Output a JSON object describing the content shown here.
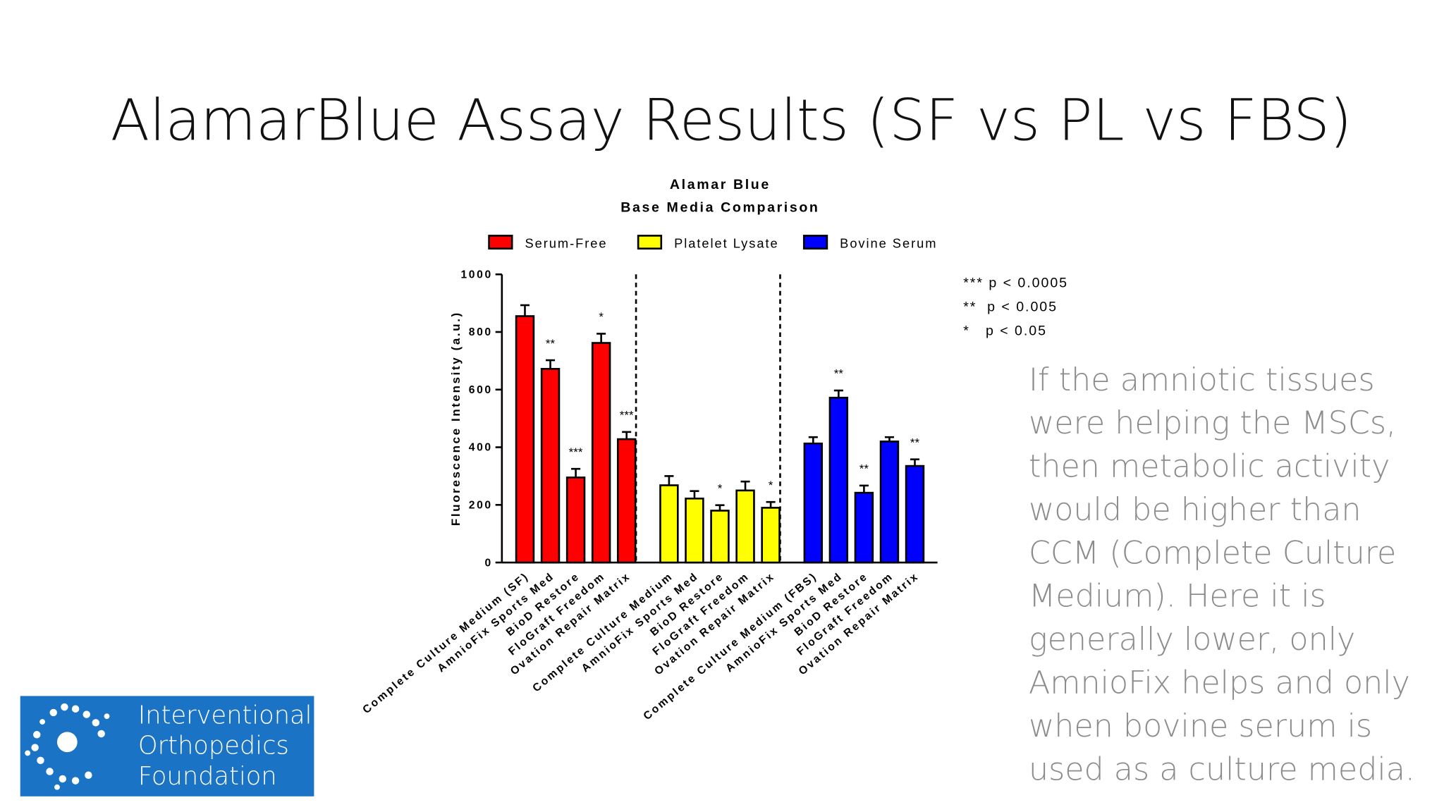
{
  "slide_title": "AlamarBlue Assay Results (SF vs PL vs FBS)",
  "body_lines": [
    "If the amniotic tissues",
    "were helping the MSCs,",
    "then metabolic activity",
    "would be higher than",
    "CCM (Complete Culture",
    "Medium). Here it is",
    "generally lower, only",
    "AmnioFix helps and only",
    "when bovine serum is",
    "used as a culture media."
  ],
  "logo_lines": [
    "Interventional",
    "Orthopedics",
    "Foundation"
  ],
  "chart_data": {
    "type": "bar",
    "title": [
      "Alamar Blue",
      "Base  Media Comparison"
    ],
    "ylabel": "Fluorescence Intensity (a.u.)",
    "ylim": [
      0,
      1000
    ],
    "yticks": [
      0,
      200,
      400,
      600,
      800,
      1000
    ],
    "notes": [
      "*** p < 0.0005",
      "**  p < 0.005",
      "*   p < 0.05"
    ],
    "series": [
      {
        "name": "Serum-Free",
        "color": "#ff0000",
        "categories": [
          "Complete Culture Medium (SF)",
          "AmnioFix Sports Med",
          "BioD Restore",
          "FloGraft Freedom",
          "Ovation Repair Matrix"
        ],
        "values": [
          855,
          672,
          295,
          762,
          428
        ],
        "errors": [
          38,
          30,
          30,
          32,
          25
        ],
        "annotations": [
          null,
          "**",
          "***",
          "*",
          "***"
        ]
      },
      {
        "name": "Platelet Lysate",
        "color": "#ffff00",
        "categories": [
          "Complete Culture Medium",
          "AmnioFix Sports Med",
          "BioD Restore",
          "FloGraft Freedom",
          "Ovation Repair Matrix"
        ],
        "values": [
          268,
          222,
          180,
          250,
          190
        ],
        "errors": [
          32,
          26,
          19,
          31,
          20
        ],
        "annotations": [
          null,
          null,
          "*",
          null,
          "*"
        ]
      },
      {
        "name": "Bovine Serum",
        "color": "#0000ff",
        "categories": [
          "Complete Culture Medium (FBS)",
          "AmnioFix Sports Med",
          "BioD Restore",
          "FloGraft Freedom",
          "Ovation Repair Matrix"
        ],
        "values": [
          413,
          572,
          242,
          420,
          335
        ],
        "errors": [
          22,
          25,
          25,
          15,
          23
        ],
        "annotations": [
          null,
          "**",
          "**",
          null,
          "**"
        ]
      }
    ]
  }
}
